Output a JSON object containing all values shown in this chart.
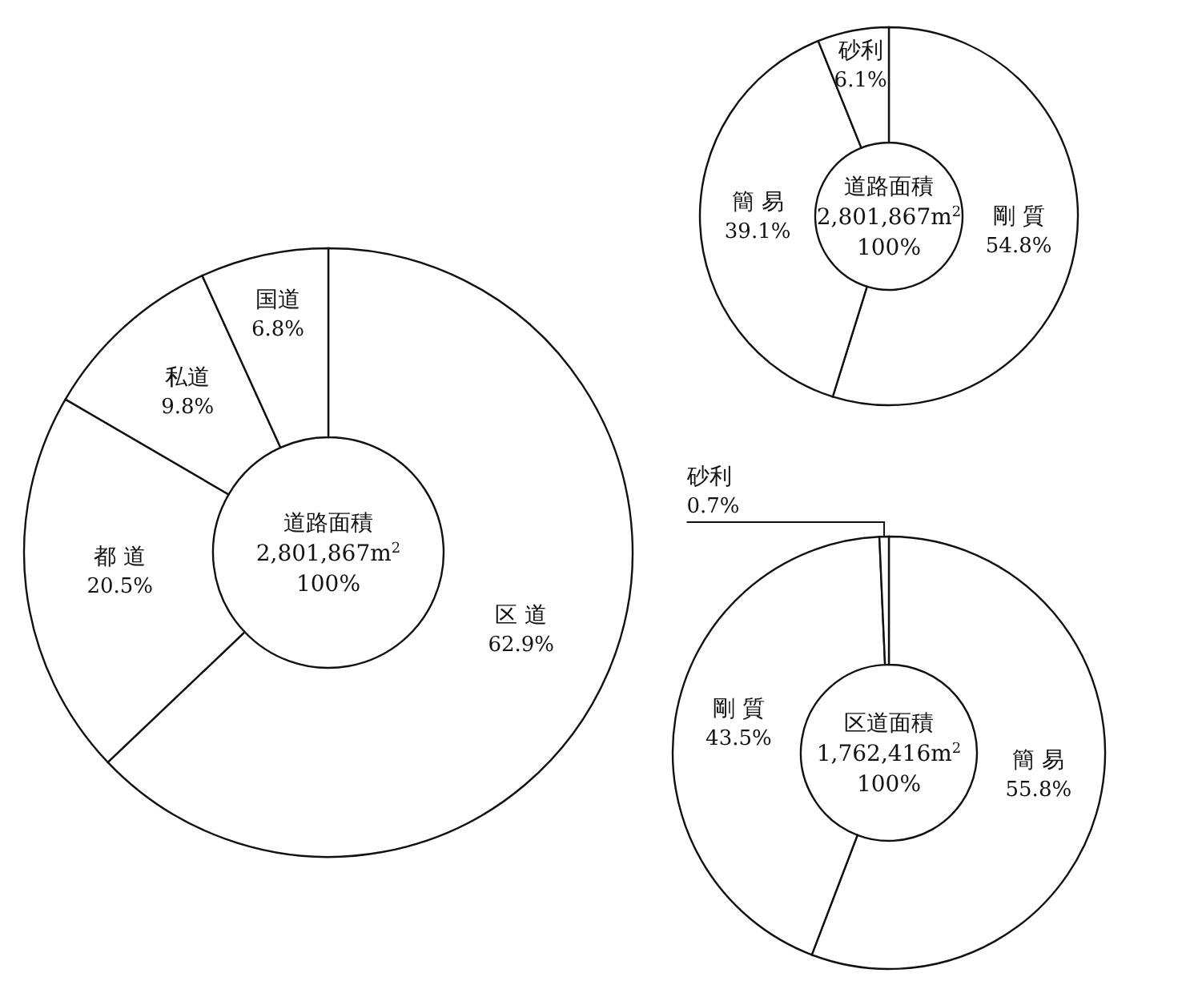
{
  "chart_data": [
    {
      "type": "donut",
      "categories": [
        "区 道",
        "都 道",
        "私道",
        "国道"
      ],
      "values": [
        62.9,
        20.5,
        9.8,
        6.8
      ],
      "colors": [
        "#ffffff",
        "#ffffff",
        "#ffffff",
        "#ffffff"
      ],
      "value_labels": [
        "62.9%",
        "20.5%",
        "9.8%",
        "6.8%"
      ],
      "annotations": [
        "道路面積",
        "2,801,867m$^{2}$",
        "100%"
      ]
    },
    {
      "type": "donut",
      "categories": [
        "剛 質",
        "簡 易",
        "砂利"
      ],
      "values": [
        54.8,
        39.1,
        6.1
      ],
      "colors": [
        "#ffffff",
        "#ffffff",
        "#ffffff"
      ],
      "value_labels": [
        "54.8%",
        "39.1%",
        "6.1%"
      ],
      "annotations": [
        "道路面積",
        "2,801,867m$^{2}$",
        "100%"
      ]
    },
    {
      "type": "donut",
      "categories": [
        "簡 易",
        "剛 質",
        "砂利"
      ],
      "values": [
        55.8,
        43.5,
        0.7
      ],
      "colors": [
        "#ffffff",
        "#ffffff",
        "#ffffff"
      ],
      "value_labels": [
        "55.8%",
        "43.5%",
        "0.7%"
      ],
      "annotations": [
        "区道面積",
        "1,762,416m$^{2}$",
        "100%"
      ]
    }
  ]
}
